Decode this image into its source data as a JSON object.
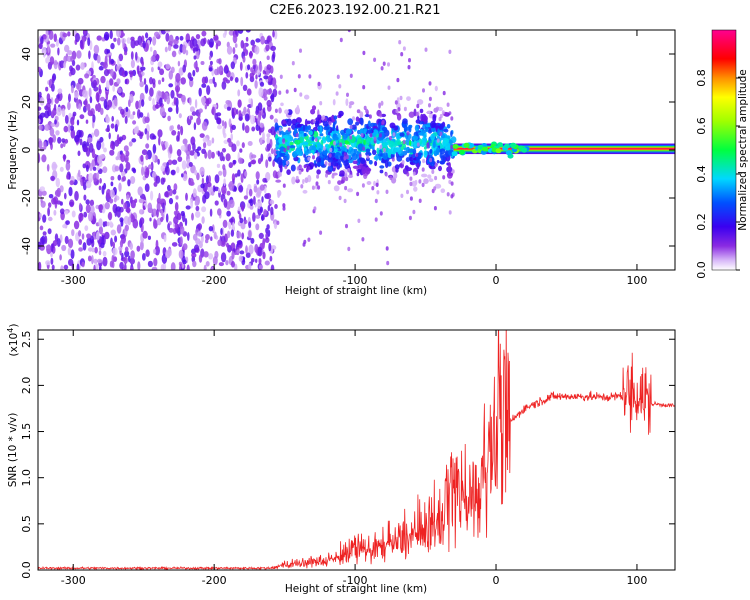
{
  "title": "C2E6.2023.192.00.21.R21",
  "chart_data": [
    {
      "type": "heatmap",
      "xlabel": "Height of straight line (km)",
      "ylabel": "Frequency (Hz)",
      "xlim": [
        -325,
        127
      ],
      "ylim": [
        -50,
        50
      ],
      "x_ticks": [
        -300,
        -200,
        -100,
        0,
        100
      ],
      "y_ticks": [
        -40,
        -20,
        0,
        20,
        40
      ],
      "colorbar": {
        "label": "Normalized spectral amplitude",
        "range": [
          0,
          1
        ],
        "ticks": [
          0.0,
          0.2,
          0.4,
          0.6,
          0.8
        ],
        "colormap": "rainbow (white-purple-blue-cyan-green-yellow-red-magenta)"
      },
      "regions": [
        {
          "x_range": [
            -325,
            -156
          ],
          "frequency_range": [
            -50,
            50
          ],
          "amplitude": "low (0.0-0.2), noise"
        },
        {
          "x_range": [
            -156,
            -30
          ],
          "frequency_center": 3,
          "frequency_spread": 10,
          "amplitude": "0.2-0.5"
        },
        {
          "x_range": [
            -30,
            127
          ],
          "frequency_center": 0.5,
          "frequency_spread": 2,
          "amplitude": "0.8-1.0"
        }
      ]
    },
    {
      "type": "line",
      "xlabel": "Height of straight line (km)",
      "ylabel": "SNR (10 * v/v)",
      "y_multiplier": "(x10",
      "y_multiplier_exp": "4",
      "y_multiplier_close": ")",
      "xlim": [
        -325,
        127
      ],
      "ylim": [
        0,
        2.6
      ],
      "x_ticks": [
        -300,
        -200,
        -100,
        0,
        100
      ],
      "y_ticks": [
        0.0,
        0.5,
        1.0,
        1.5,
        2.0,
        2.5
      ],
      "series": [
        {
          "color": "#ee2222",
          "x": [
            -325,
            -160,
            -150,
            -120,
            -100,
            -80,
            -60,
            -40,
            -30,
            -20,
            -10,
            0,
            10,
            20,
            30,
            40,
            60,
            80,
            95,
            100,
            105,
            110,
            127
          ],
          "y": [
            0.02,
            0.02,
            0.05,
            0.1,
            0.2,
            0.25,
            0.35,
            0.5,
            0.9,
            0.6,
            1.0,
            1.35,
            1.6,
            1.75,
            1.82,
            1.88,
            1.88,
            1.87,
            1.9,
            1.95,
            1.85,
            1.8,
            1.78
          ]
        }
      ]
    }
  ]
}
